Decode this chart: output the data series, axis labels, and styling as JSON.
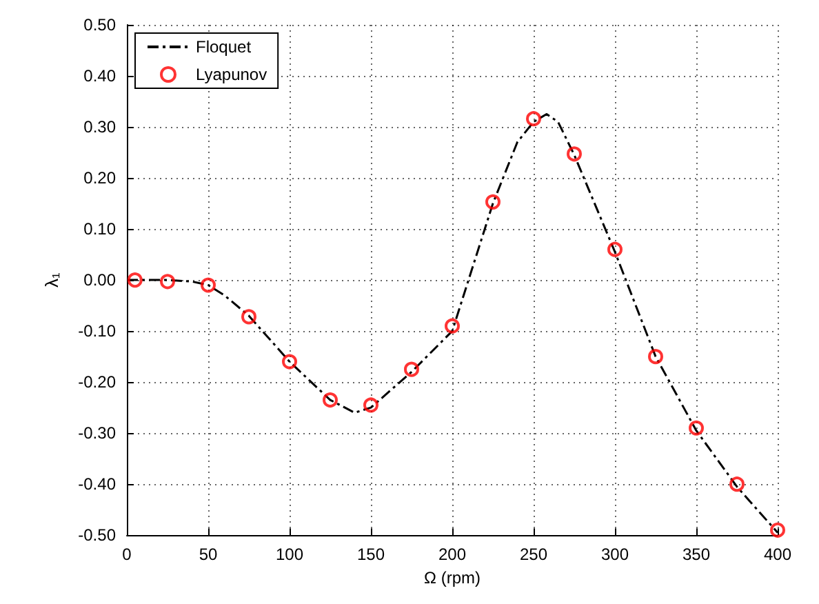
{
  "chart_data": {
    "type": "line",
    "xlabel": "Ω (rpm)",
    "ylabel": "λ₁",
    "xlim": [
      0,
      400
    ],
    "xticks": [
      0,
      50,
      100,
      150,
      200,
      250,
      300,
      350,
      400
    ],
    "ylim": [
      -0.5,
      0.5
    ],
    "yticks": [
      {
        "value": -0.5,
        "label": "-0.50"
      },
      {
        "value": -0.4,
        "label": "-0.40"
      },
      {
        "value": -0.3,
        "label": "-0.30"
      },
      {
        "value": -0.2,
        "label": "-0.20"
      },
      {
        "value": -0.1,
        "label": "-0.10"
      },
      {
        "value": 0,
        "label": "0.00"
      },
      {
        "value": 0.1,
        "label": "0.10"
      },
      {
        "value": 0.2,
        "label": "0.20"
      },
      {
        "value": 0.3,
        "label": "0.30"
      },
      {
        "value": 0.4,
        "label": "0.40"
      },
      {
        "value": 0.5,
        "label": "0.50"
      }
    ],
    "grid": true,
    "legend": "top left",
    "series": [
      {
        "name": "Floquet",
        "color": "#000000",
        "line_style": "dashed",
        "marker": "none",
        "x": [
          0,
          25,
          40,
          50,
          60,
          75,
          100,
          125,
          140,
          150,
          175,
          200,
          212,
          225,
          240,
          250,
          258,
          265,
          275,
          300,
          325,
          350,
          375,
          400
        ],
        "values": [
          0,
          0,
          -0.003,
          -0.01,
          -0.03,
          -0.07,
          -0.16,
          -0.235,
          -0.26,
          -0.25,
          -0.18,
          -0.1,
          0.02,
          0.15,
          0.27,
          0.31,
          0.325,
          0.31,
          0.245,
          0.055,
          -0.15,
          -0.295,
          -0.405,
          -0.495
        ]
      },
      {
        "name": "Lyapunov",
        "type": "scatter",
        "color": "#ff0000",
        "marker": "circle",
        "x": [
          5,
          25,
          50,
          75,
          100,
          125,
          150,
          175,
          200,
          225,
          250,
          275,
          300,
          325,
          350,
          375,
          400
        ],
        "values": [
          0,
          -0.003,
          -0.01,
          -0.072,
          -0.16,
          -0.235,
          -0.245,
          -0.175,
          -0.09,
          0.153,
          0.316,
          0.247,
          0.06,
          -0.15,
          -0.29,
          -0.4,
          -0.49
        ]
      }
    ]
  }
}
